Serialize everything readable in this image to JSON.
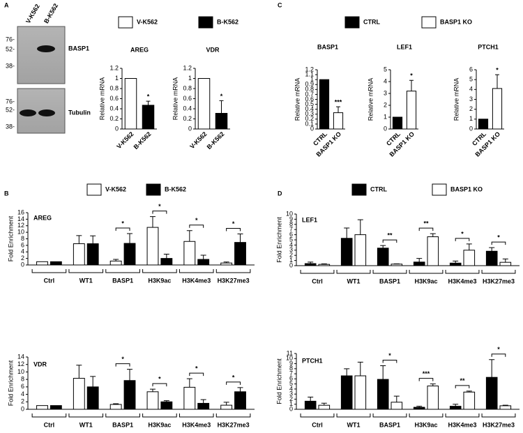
{
  "panel_labels": [
    "A",
    "B",
    "C",
    "D"
  ],
  "blot": {
    "lanes": [
      "V-K562",
      "B-K562"
    ],
    "panels": [
      {
        "label": "BASP1",
        "markers": [
          "76-",
          "52-",
          "38-"
        ]
      },
      {
        "label": "Tubulin",
        "markers": [
          "76-",
          "52-",
          "38-"
        ]
      }
    ]
  },
  "legends": [
    [
      {
        "name": "V-K562",
        "color": "#ffffff"
      },
      {
        "name": "B-K562",
        "color": "#000000"
      }
    ],
    [
      {
        "name": "CTRL",
        "color": "#000000"
      },
      {
        "name": "BASP1 KO",
        "color": "#ffffff"
      }
    ],
    [
      {
        "name": "V-K562",
        "color": "#ffffff"
      },
      {
        "name": "B-K562",
        "color": "#000000"
      }
    ],
    [
      {
        "name": "CTRL",
        "color": "#000000"
      },
      {
        "name": "BASP1 KO",
        "color": "#ffffff"
      }
    ]
  ],
  "chart_data": [
    {
      "type": "bar",
      "title": "AREG",
      "y_label": "Relative mRNA",
      "categories": [
        "V-K562",
        "B-K562"
      ],
      "colors": [
        "#ffffff",
        "#000000"
      ],
      "values": [
        1,
        0.47
      ],
      "errors": [
        0,
        0.08
      ],
      "annotations": [
        null,
        "*"
      ],
      "ylim": [
        0,
        1.2
      ],
      "yticks": [
        0,
        0.2,
        0.4,
        0.6,
        0.8,
        1,
        1.2
      ]
    },
    {
      "type": "bar",
      "title": "VDR",
      "y_label": "Relative mRNA",
      "categories": [
        "V-K562",
        "B-K562"
      ],
      "colors": [
        "#ffffff",
        "#000000"
      ],
      "values": [
        1,
        0.31
      ],
      "errors": [
        0,
        0.25
      ],
      "annotations": [
        null,
        "*"
      ],
      "ylim": [
        0,
        1.2
      ],
      "yticks": [
        0,
        0.2,
        0.4,
        0.6,
        0.8,
        1,
        1.2
      ]
    },
    {
      "type": "bar",
      "title": "BASP1",
      "y_label": "Relative mRNA",
      "categories": [
        "CTRL",
        "BASP1 KO"
      ],
      "colors": [
        "#000000",
        "#ffffff"
      ],
      "values": [
        1,
        0.33
      ],
      "errors": [
        0,
        0.12
      ],
      "annotations": [
        null,
        "***"
      ],
      "ylim": [
        0,
        1.2
      ],
      "yticks": [
        0,
        0.1,
        0.2,
        0.3,
        0.4,
        0.5,
        0.6,
        0.7,
        0.8,
        0.9,
        1,
        1.1,
        1.2
      ]
    },
    {
      "type": "bar",
      "title": "LEF1",
      "y_label": "Relative mRNA",
      "categories": [
        "CTRL",
        "BASP1 KO"
      ],
      "colors": [
        "#000000",
        "#ffffff"
      ],
      "values": [
        1,
        3.2
      ],
      "errors": [
        0,
        0.9
      ],
      "annotations": [
        null,
        "*"
      ],
      "ylim": [
        0,
        5
      ],
      "yticks": [
        0,
        1,
        2,
        3,
        4,
        5
      ]
    },
    {
      "type": "bar",
      "title": "PTCH1",
      "y_label": "Relative mRNA",
      "categories": [
        "CTRL",
        "BASP1 KO"
      ],
      "colors": [
        "#000000",
        "#ffffff"
      ],
      "values": [
        1,
        4.1
      ],
      "errors": [
        0,
        1.4
      ],
      "annotations": [
        null,
        "*"
      ],
      "ylim": [
        0,
        6
      ],
      "yticks": [
        0,
        1,
        2,
        3,
        4,
        5,
        6
      ]
    },
    {
      "type": "grouped_bar",
      "title": "AREG",
      "y_label": "Fold Enrichment",
      "categories": [
        "Ctrl",
        "WT1",
        "BASP1",
        "H3K9ac",
        "H3K4me3",
        "H3K27me3"
      ],
      "series": [
        {
          "color": "#ffffff",
          "values": [
            1,
            6.5,
            1.2,
            11.5,
            7.2,
            0.6
          ],
          "errors": [
            0,
            2.5,
            0.5,
            3.3,
            3.3,
            0.3
          ]
        },
        {
          "color": "#000000",
          "values": [
            1,
            6.5,
            6.6,
            2,
            1.7,
            6.9
          ],
          "errors": [
            0,
            2.4,
            3,
            1.3,
            1.3,
            2.6
          ]
        }
      ],
      "significance": [
        null,
        null,
        "*",
        "*",
        "*",
        "*"
      ],
      "ylim": [
        0,
        16
      ],
      "yticks": [
        0,
        2,
        4,
        6,
        8,
        10,
        12,
        14,
        16
      ]
    },
    {
      "type": "grouped_bar",
      "title": "VDR",
      "y_label": "Fold Enrichment",
      "categories": [
        "Ctrl",
        "WT1",
        "BASP1",
        "H3K9ac",
        "H3K4me3",
        "H3K27me3"
      ],
      "series": [
        {
          "color": "#ffffff",
          "values": [
            1,
            8.3,
            1.3,
            4.7,
            5.9,
            1.1
          ],
          "errors": [
            0,
            3.5,
            0.2,
            0.7,
            2.3,
            0.8
          ]
        },
        {
          "color": "#000000",
          "values": [
            1,
            6,
            7.7,
            2,
            1.6,
            4.7
          ],
          "errors": [
            0,
            2.8,
            3,
            0.3,
            1,
            1.1
          ]
        }
      ],
      "significance": [
        null,
        null,
        "*",
        "*",
        "*",
        "*"
      ],
      "ylim": [
        0,
        14
      ],
      "yticks": [
        0,
        2,
        4,
        6,
        8,
        10,
        12,
        14
      ]
    },
    {
      "type": "grouped_bar",
      "title": "LEF1",
      "y_label": "Fold Enrichment",
      "categories": [
        "Ctrl",
        "WT1",
        "BASP1",
        "H3K9ac",
        "H3K4me3",
        "H3K27me3"
      ],
      "series": [
        {
          "color": "#000000",
          "values": [
            0.4,
            5.3,
            3.4,
            0.7,
            0.5,
            2.8
          ],
          "errors": [
            0.3,
            2,
            0.5,
            0.7,
            0.4,
            0.7
          ]
        },
        {
          "color": "#ffffff",
          "values": [
            0.25,
            6,
            0.3,
            5.6,
            3,
            0.65
          ],
          "errors": [
            0.1,
            2.9,
            0.05,
            0.6,
            1.2,
            0.65
          ]
        }
      ],
      "significance": [
        null,
        null,
        "**",
        "**",
        "*",
        "*"
      ],
      "ylim": [
        0,
        10
      ],
      "yticks": [
        0,
        1,
        2,
        3,
        4,
        5,
        6,
        7,
        8,
        9,
        10
      ]
    },
    {
      "type": "grouped_bar",
      "title": "PTCH1",
      "y_label": "Fold Enrichment",
      "categories": [
        "Ctrl",
        "WT1",
        "BASP1",
        "H3K9ac",
        "H3K4me3",
        "H3K27me3"
      ],
      "series": [
        {
          "color": "#000000",
          "values": [
            1.6,
            6.6,
            5.9,
            0.4,
            0.6,
            6.3
          ],
          "errors": [
            0.8,
            1.4,
            2.7,
            0.2,
            0.4,
            3.5
          ]
        },
        {
          "color": "#ffffff",
          "values": [
            0.8,
            6.6,
            1.4,
            4.6,
            3.4,
            0.7
          ],
          "errors": [
            0.4,
            2.7,
            1.2,
            0.4,
            0.2,
            0.1
          ]
        }
      ],
      "significance": [
        null,
        null,
        "*",
        "***",
        "**",
        "*"
      ],
      "ylim": [
        0,
        11
      ],
      "yticks": [
        0,
        1,
        2,
        3,
        4,
        5,
        6,
        7,
        8,
        9,
        10,
        11
      ]
    }
  ]
}
